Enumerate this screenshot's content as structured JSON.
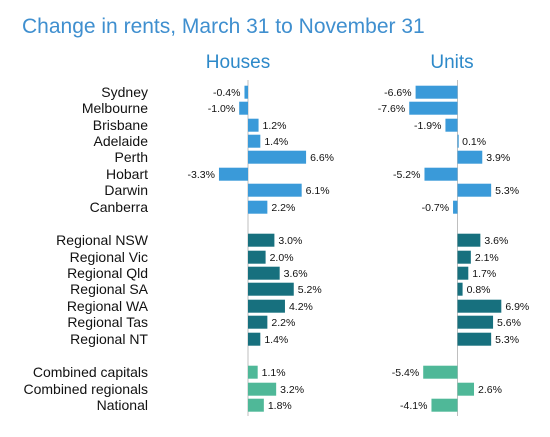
{
  "chart_data": {
    "type": "bar",
    "orientation": "horizontal",
    "title": "Change in rents, March 31 to November 31",
    "value_format": "{v}%",
    "colors": {
      "capitals": "#3a9ad9",
      "regionals": "#17707e",
      "aggregates": "#4fb898",
      "title": "#3f8fcf",
      "panel_title": "#2d89c9",
      "axis": "#bfbfbf"
    },
    "groups": [
      {
        "key": "capitals",
        "categories": [
          "Sydney",
          "Melbourne",
          "Brisbane",
          "Adelaide",
          "Perth",
          "Hobart",
          "Darwin",
          "Canberra"
        ]
      },
      {
        "key": "regionals",
        "categories": [
          "Regional NSW",
          "Regional Vic",
          "Regional Qld",
          "Regional SA",
          "Regional WA",
          "Regional Tas",
          "Regional NT"
        ]
      },
      {
        "key": "aggregates",
        "categories": [
          "Combined capitals",
          "Combined regionals",
          "National"
        ]
      }
    ],
    "series": [
      {
        "name": "Houses",
        "values": [
          -0.4,
          -1.0,
          1.2,
          1.4,
          6.6,
          -3.3,
          6.1,
          2.2,
          3.0,
          2.0,
          3.6,
          5.2,
          4.2,
          2.2,
          1.4,
          1.1,
          3.2,
          1.8
        ],
        "labels": [
          "-0.4%",
          "-1.0%",
          "1.2%",
          "1.4%",
          "6.6%",
          "-3.3%",
          "6.1%",
          "2.2%",
          "3.0%",
          "2.0%",
          "3.6%",
          "5.2%",
          "4.2%",
          "2.2%",
          "1.4%",
          "1.1%",
          "3.2%",
          "1.8%"
        ]
      },
      {
        "name": "Units",
        "values": [
          -6.6,
          -7.6,
          -1.9,
          0.1,
          3.9,
          -5.2,
          5.3,
          -0.7,
          3.6,
          2.1,
          1.7,
          0.8,
          6.9,
          5.6,
          5.3,
          -5.4,
          2.6,
          -4.1
        ],
        "labels": [
          "-6.6%",
          "-7.6%",
          "-1.9%",
          "0.1%",
          "3.9%",
          "-5.2%",
          "5.3%",
          "-0.7%",
          "3.6%",
          "2.1%",
          "1.7%",
          "0.8%",
          "6.9%",
          "5.6%",
          "5.3%",
          "-5.4%",
          "2.6%",
          "-4.1%"
        ]
      }
    ]
  }
}
